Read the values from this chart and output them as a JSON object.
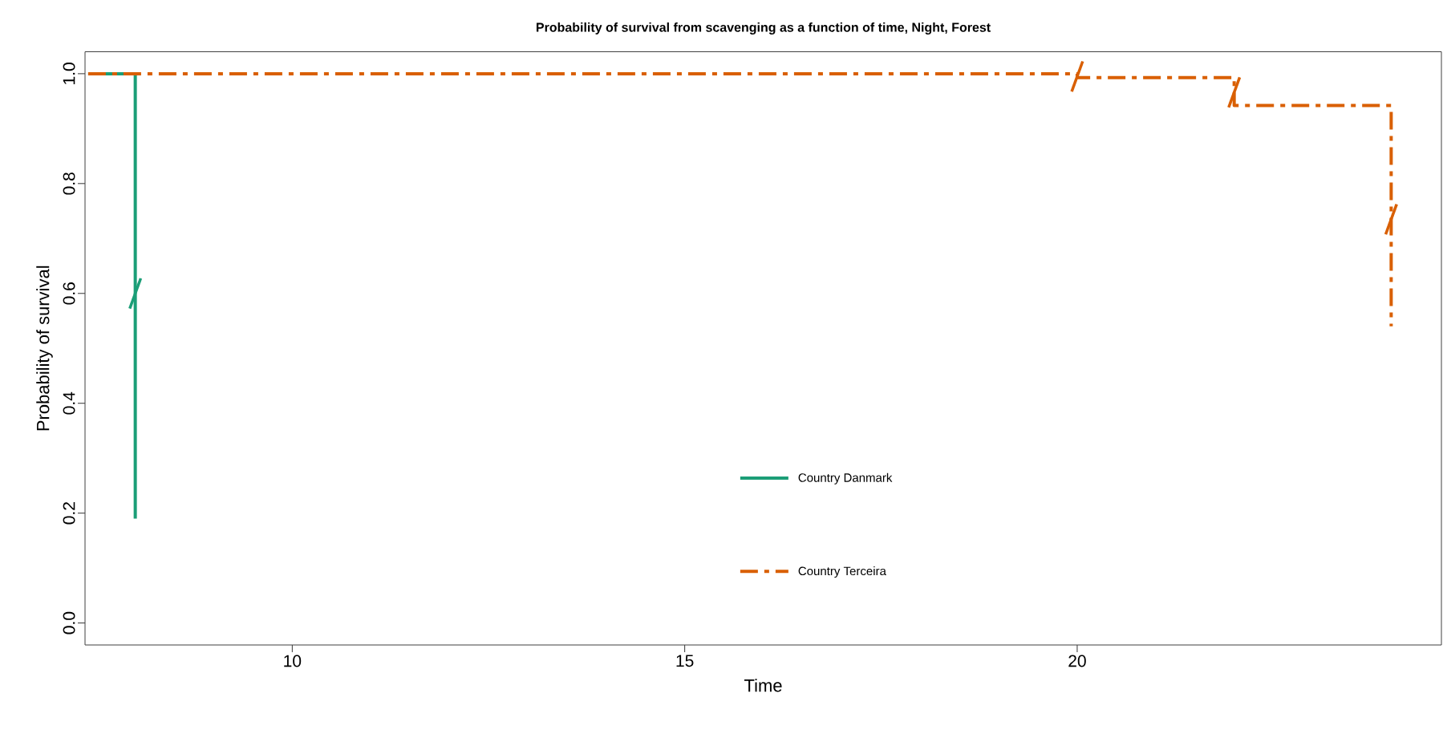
{
  "chart_data": {
    "type": "step",
    "title": "Probability of survival from scavenging as a function of time, Night, Forest",
    "xlabel": "Time",
    "ylabel": "Probability of survival",
    "xlim": [
      7.36,
      24.64
    ],
    "xticks": [
      10,
      15,
      20
    ],
    "ylim": [
      -0.04,
      1.04
    ],
    "yticks": [
      {
        "value": 0,
        "label": "0.0"
      },
      0.2,
      0.4,
      0.6,
      0.8,
      {
        "value": 1,
        "label": "1.0"
      }
    ],
    "legend": "bottom",
    "series": [
      {
        "name": "Country Danmark",
        "color": "#1b9e77",
        "line_style": "solid",
        "x": [
          7.4,
          8
        ],
        "values": [
          1,
          0.19
        ]
      },
      {
        "name": "Country Terceira",
        "color": "#d95f02",
        "line_style": "dashdot",
        "x": [
          7.4,
          20,
          22,
          24
        ],
        "values": [
          1,
          0.993,
          0.942,
          0.54
        ]
      },
      {
        "type": "scatter",
        "color": "#1b9e77",
        "x": [
          8
        ],
        "values": [
          0.6
        ]
      },
      {
        "type": "scatter",
        "color": "#d95f02",
        "x": [
          20,
          22,
          24
        ],
        "values": [
          0.995,
          0.966,
          0.735
        ]
      }
    ]
  }
}
